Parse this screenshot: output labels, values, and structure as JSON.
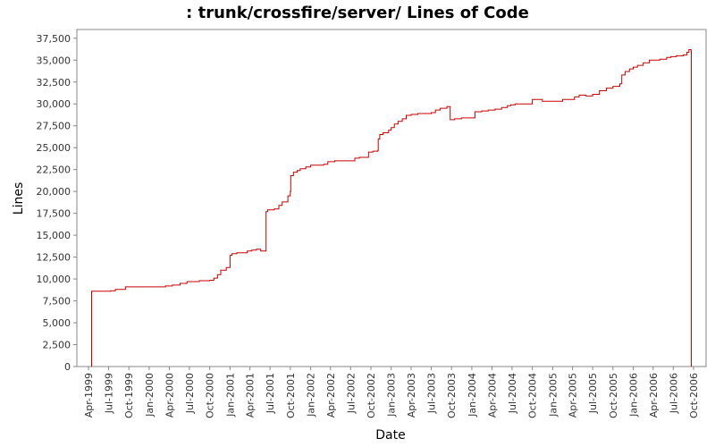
{
  "chart_data": {
    "type": "line",
    "title": ": trunk/crossfire/server/ Lines of Code",
    "xlabel": "Date",
    "ylabel": "Lines",
    "x_tick_labels": [
      "Apr-1999",
      "Jul-1999",
      "Oct-1999",
      "Jan-2000",
      "Apr-2000",
      "Jul-2000",
      "Oct-2000",
      "Jan-2001",
      "Apr-2001",
      "Jul-2001",
      "Oct-2001",
      "Jan-2002",
      "Apr-2002",
      "Jul-2002",
      "Oct-2002",
      "Jan-2003",
      "Apr-2003",
      "Jul-2003",
      "Oct-2003",
      "Jan-2004",
      "Apr-2004",
      "Jul-2004",
      "Oct-2004",
      "Jan-2005",
      "Apr-2005",
      "Jul-2005",
      "Oct-2005",
      "Jan-2006",
      "Apr-2006",
      "Jul-2006",
      "Oct-2006"
    ],
    "y_tick_labels": [
      "0",
      "2,500",
      "5,000",
      "7,500",
      "10,000",
      "12,500",
      "15,000",
      "17,500",
      "20,000",
      "22,500",
      "25,000",
      "27,500",
      "30,000",
      "32,500",
      "35,000",
      "37,500"
    ],
    "ylim": [
      0,
      38500
    ],
    "grid": false,
    "line_color": "#cc0000",
    "series": [
      {
        "step": true,
        "points": [
          [
            "1999-04-14",
            0
          ],
          [
            "1999-04-15",
            8600
          ],
          [
            "1999-07-10",
            8650
          ],
          [
            "1999-08-01",
            8800
          ],
          [
            "1999-09-15",
            9100
          ],
          [
            "2000-01-01",
            9100
          ],
          [
            "2000-03-15",
            9200
          ],
          [
            "2000-04-15",
            9300
          ],
          [
            "2000-05-20",
            9500
          ],
          [
            "2000-06-20",
            9700
          ],
          [
            "2000-08-15",
            9800
          ],
          [
            "2000-10-01",
            9850
          ],
          [
            "2000-10-20",
            10100
          ],
          [
            "2000-11-05",
            10500
          ],
          [
            "2000-11-20",
            11000
          ],
          [
            "2000-12-15",
            11300
          ],
          [
            "2001-01-01",
            12700
          ],
          [
            "2001-01-10",
            12900
          ],
          [
            "2001-02-01",
            13000
          ],
          [
            "2001-03-01",
            13000
          ],
          [
            "2001-03-20",
            13200
          ],
          [
            "2001-04-10",
            13300
          ],
          [
            "2001-05-01",
            13400
          ],
          [
            "2001-05-20",
            13200
          ],
          [
            "2001-06-13",
            17700
          ],
          [
            "2001-06-20",
            17900
          ],
          [
            "2001-07-20",
            18000
          ],
          [
            "2001-08-10",
            18400
          ],
          [
            "2001-08-25",
            18800
          ],
          [
            "2001-09-20",
            19500
          ],
          [
            "2001-10-01",
            20000
          ],
          [
            "2001-10-03",
            21800
          ],
          [
            "2001-10-15",
            22200
          ],
          [
            "2001-11-01",
            22400
          ],
          [
            "2001-11-15",
            22600
          ],
          [
            "2001-12-10",
            22800
          ],
          [
            "2002-01-01",
            23000
          ],
          [
            "2002-03-01",
            23100
          ],
          [
            "2002-03-20",
            23400
          ],
          [
            "2002-04-20",
            23500
          ],
          [
            "2002-07-01",
            23500
          ],
          [
            "2002-07-20",
            23800
          ],
          [
            "2002-08-10",
            23900
          ],
          [
            "2002-09-20",
            24500
          ],
          [
            "2002-10-10",
            24600
          ],
          [
            "2002-11-01",
            24700
          ],
          [
            "2002-11-03",
            26000
          ],
          [
            "2002-11-10",
            26500
          ],
          [
            "2002-11-25",
            26700
          ],
          [
            "2002-12-20",
            27000
          ],
          [
            "2003-01-01",
            27300
          ],
          [
            "2003-01-15",
            27700
          ],
          [
            "2003-02-01",
            28000
          ],
          [
            "2003-02-20",
            28300
          ],
          [
            "2003-03-10",
            28700
          ],
          [
            "2003-04-01",
            28800
          ],
          [
            "2003-05-01",
            28900
          ],
          [
            "2003-07-01",
            29000
          ],
          [
            "2003-07-20",
            29300
          ],
          [
            "2003-08-10",
            29500
          ],
          [
            "2003-09-10",
            29700
          ],
          [
            "2003-09-25",
            28200
          ],
          [
            "2003-10-15",
            28300
          ],
          [
            "2003-11-15",
            28400
          ],
          [
            "2004-01-01",
            28400
          ],
          [
            "2004-01-15",
            29100
          ],
          [
            "2004-02-15",
            29200
          ],
          [
            "2004-03-15",
            29300
          ],
          [
            "2004-04-15",
            29400
          ],
          [
            "2004-05-15",
            29600
          ],
          [
            "2004-06-10",
            29800
          ],
          [
            "2004-06-25",
            29900
          ],
          [
            "2004-07-15",
            30000
          ],
          [
            "2004-09-01",
            30000
          ],
          [
            "2004-10-01",
            30500
          ],
          [
            "2004-11-15",
            30300
          ],
          [
            "2005-01-01",
            30300
          ],
          [
            "2005-02-15",
            30500
          ],
          [
            "2005-04-10",
            30800
          ],
          [
            "2005-05-01",
            31000
          ],
          [
            "2005-06-01",
            30900
          ],
          [
            "2005-07-01",
            31100
          ],
          [
            "2005-08-01",
            31500
          ],
          [
            "2005-09-01",
            31800
          ],
          [
            "2005-10-01",
            32000
          ],
          [
            "2005-11-01",
            32300
          ],
          [
            "2005-11-10",
            33300
          ],
          [
            "2005-11-25",
            33700
          ],
          [
            "2005-12-15",
            34000
          ],
          [
            "2006-01-01",
            34200
          ],
          [
            "2006-01-20",
            34400
          ],
          [
            "2006-02-15",
            34700
          ],
          [
            "2006-03-15",
            35000
          ],
          [
            "2006-05-01",
            35100
          ],
          [
            "2006-06-01",
            35300
          ],
          [
            "2006-06-20",
            35400
          ],
          [
            "2006-07-15",
            35500
          ],
          [
            "2006-08-15",
            35600
          ],
          [
            "2006-09-01",
            35900
          ],
          [
            "2006-09-10",
            36200
          ],
          [
            "2006-09-20",
            36000
          ],
          [
            "2006-09-21",
            0
          ]
        ]
      }
    ]
  }
}
